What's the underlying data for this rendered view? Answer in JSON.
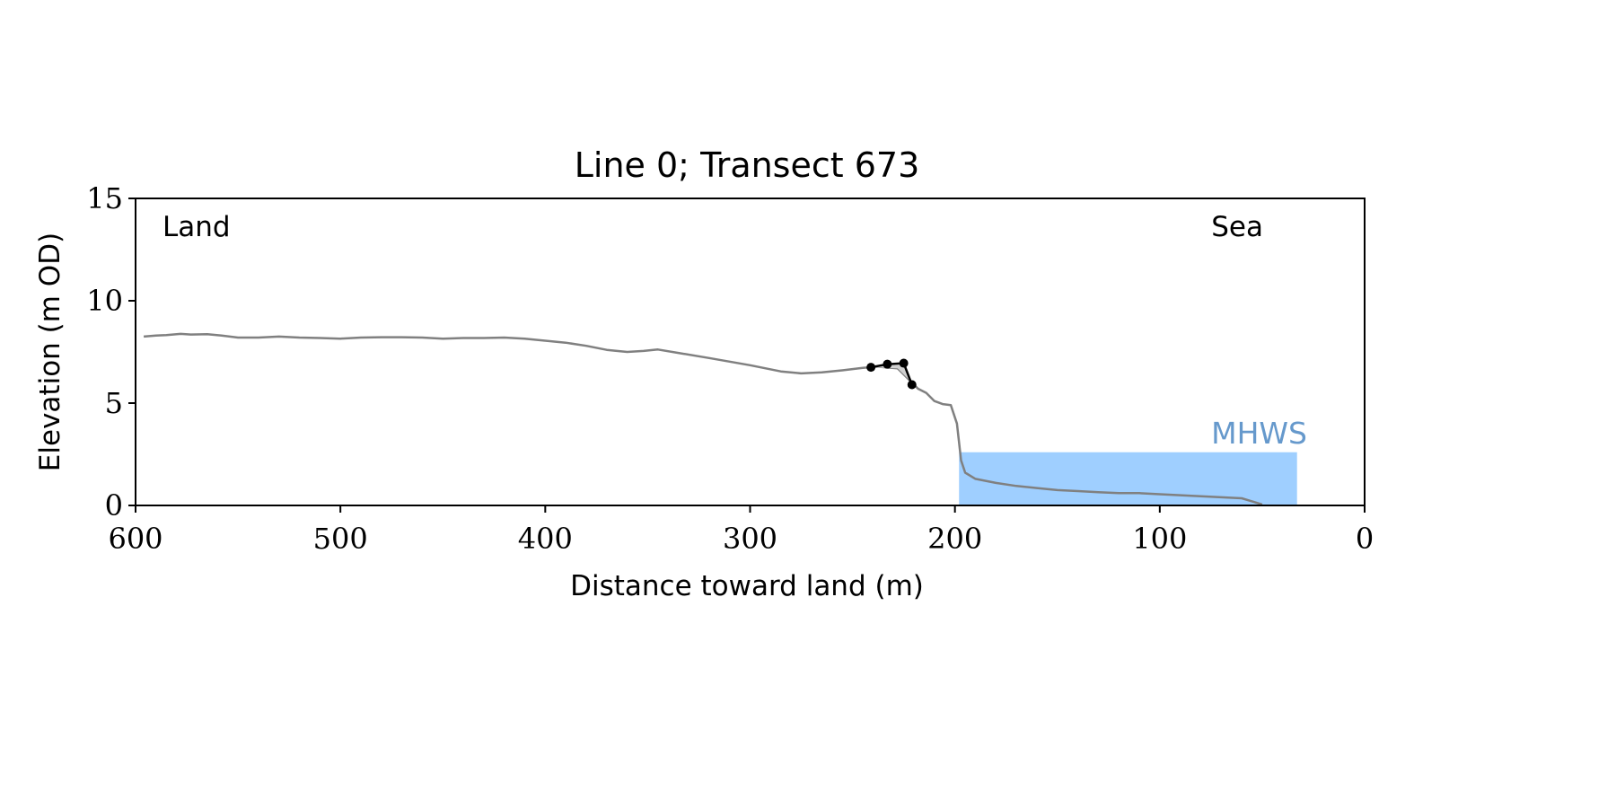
{
  "chart_data": {
    "type": "line",
    "title": "Line 0; Transect 673",
    "xlabel": "Distance toward land (m)",
    "ylabel": "Elevation (m OD)",
    "xlim": [
      600,
      0
    ],
    "ylim": [
      0,
      15
    ],
    "xticks": [
      "600",
      "500",
      "400",
      "300",
      "200",
      "100",
      "0"
    ],
    "yticks": [
      "0",
      "5",
      "10",
      "15"
    ],
    "annotations": {
      "land": "Land",
      "sea": "Sea",
      "mhws_label": "MHWS"
    },
    "colors": {
      "profile": "#808080",
      "mhws_fill": "#9fcfff",
      "mhws_text": "#6699cc",
      "feature": "#000000",
      "feature_fill": "#d0d0d0"
    },
    "mhws": {
      "x_start": 198,
      "x_end": 33,
      "elevation": 2.6
    },
    "series": [
      {
        "values": [
          [
            596,
            8.25
          ],
          [
            590,
            8.3
          ],
          [
            585,
            8.32
          ],
          [
            578,
            8.38
          ],
          [
            573,
            8.35
          ],
          [
            565,
            8.37
          ],
          [
            558,
            8.3
          ],
          [
            550,
            8.2
          ],
          [
            540,
            8.2
          ],
          [
            530,
            8.25
          ],
          [
            520,
            8.2
          ],
          [
            510,
            8.18
          ],
          [
            500,
            8.15
          ],
          [
            490,
            8.2
          ],
          [
            480,
            8.22
          ],
          [
            470,
            8.22
          ],
          [
            460,
            8.2
          ],
          [
            450,
            8.15
          ],
          [
            440,
            8.18
          ],
          [
            430,
            8.18
          ],
          [
            420,
            8.2
          ],
          [
            410,
            8.15
          ],
          [
            400,
            8.05
          ],
          [
            390,
            7.95
          ],
          [
            380,
            7.8
          ],
          [
            370,
            7.6
          ],
          [
            360,
            7.5
          ],
          [
            352,
            7.55
          ],
          [
            345,
            7.62
          ],
          [
            335,
            7.45
          ],
          [
            320,
            7.2
          ],
          [
            300,
            6.85
          ],
          [
            285,
            6.55
          ],
          [
            275,
            6.45
          ],
          [
            265,
            6.5
          ],
          [
            255,
            6.6
          ],
          [
            245,
            6.72
          ],
          [
            238,
            6.78
          ],
          [
            228,
            6.7
          ],
          [
            222,
            6.1
          ],
          [
            218,
            5.7
          ],
          [
            214,
            5.5
          ],
          [
            210,
            5.1
          ],
          [
            206,
            4.95
          ],
          [
            202,
            4.9
          ],
          [
            199,
            4.0
          ],
          [
            197,
            2.2
          ],
          [
            195,
            1.6
          ],
          [
            190,
            1.3
          ],
          [
            185,
            1.2
          ],
          [
            180,
            1.1
          ],
          [
            170,
            0.95
          ],
          [
            160,
            0.85
          ],
          [
            150,
            0.75
          ],
          [
            140,
            0.7
          ],
          [
            130,
            0.65
          ],
          [
            120,
            0.6
          ],
          [
            110,
            0.6
          ],
          [
            100,
            0.55
          ],
          [
            90,
            0.5
          ],
          [
            80,
            0.45
          ],
          [
            70,
            0.4
          ],
          [
            60,
            0.35
          ],
          [
            55,
            0.2
          ],
          [
            50,
            0.05
          ]
        ]
      }
    ],
    "feature": {
      "points": [
        [
          241,
          6.75
        ],
        [
          233,
          6.9
        ],
        [
          225,
          6.95
        ],
        [
          221,
          5.9
        ]
      ],
      "shade_base": [
        [
          241,
          6.75
        ],
        [
          228,
          6.7
        ],
        [
          222,
          6.1
        ],
        [
          221,
          5.9
        ]
      ]
    }
  }
}
